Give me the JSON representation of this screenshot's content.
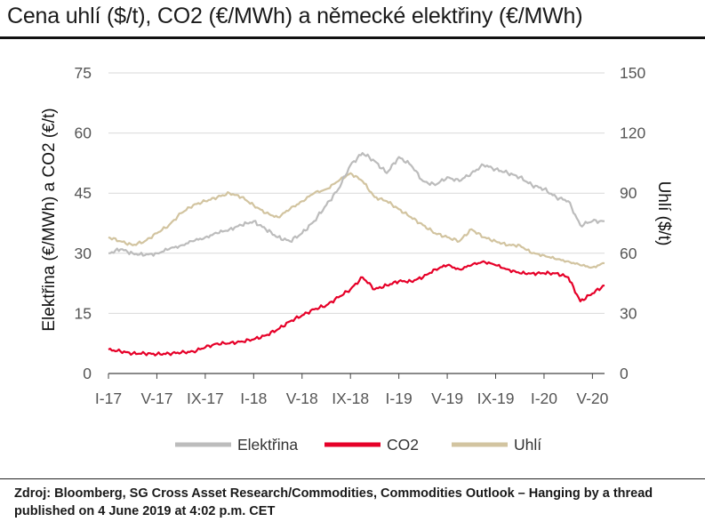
{
  "header": {
    "title": "Cena uhlí ($/t), CO2 (€/MWh) a německé elektřiny (€/MWh)"
  },
  "footer": {
    "source": "Zdroj: Bloomberg, SG Cross Asset Research/Commodities, Commodities Outlook – Hanging by a thread published on 4 June 2019 at 4:02 p.m. CET"
  },
  "chart_data": {
    "type": "line",
    "title": "Cena uhlí ($/t), CO2 (€/MWh) a německé elektřiny (€/MWh)",
    "y_left_label": "Elektřina (€/MWh) a CO2 (€/t)",
    "y_right_label": "Uhlí ($/t)",
    "y_left_ticks": [
      "0",
      "15",
      "30",
      "45",
      "60",
      "75"
    ],
    "y_right_ticks": [
      "0",
      "30",
      "60",
      "90",
      "120",
      "150"
    ],
    "y_left_range": [
      0,
      75
    ],
    "y_right_range": [
      0,
      150
    ],
    "x_ticks": [
      "I-17",
      "V-17",
      "IX-17",
      "I-18",
      "V-18",
      "IX-18",
      "I-19",
      "V-19",
      "IX-19",
      "I-20",
      "V-20"
    ],
    "x_range": [
      "2017-01",
      "2020-06"
    ],
    "grid": "horizontal",
    "legend_position": "bottom",
    "series": [
      {
        "name": "Elektřina",
        "axis": "left",
        "color": "#bcbcbc",
        "x": [
          "2017-01",
          "2017-02",
          "2017-03",
          "2017-04",
          "2017-05",
          "2017-06",
          "2017-07",
          "2017-08",
          "2017-09",
          "2017-10",
          "2017-11",
          "2017-12",
          "2018-01",
          "2018-02",
          "2018-03",
          "2018-04",
          "2018-05",
          "2018-06",
          "2018-07",
          "2018-08",
          "2018-09",
          "2018-10",
          "2018-11",
          "2018-12",
          "2019-01",
          "2019-02",
          "2019-03",
          "2019-04",
          "2019-05",
          "2019-06",
          "2019-07",
          "2019-08",
          "2019-09",
          "2019-10",
          "2019-11",
          "2019-12",
          "2020-01",
          "2020-02",
          "2020-03",
          "2020-04",
          "2020-05",
          "2020-06"
        ],
        "values": [
          30,
          31,
          30,
          29.5,
          30,
          31,
          32,
          33,
          34,
          35,
          36,
          37,
          38,
          36,
          34,
          33,
          35,
          38,
          42,
          46,
          52,
          55,
          53,
          50,
          54,
          52,
          48,
          47,
          49,
          48,
          50,
          52,
          51,
          50,
          49,
          47,
          46,
          44,
          43,
          37,
          38,
          38
        ]
      },
      {
        "name": "CO2",
        "axis": "left",
        "color": "#e60028",
        "x": [
          "2017-01",
          "2017-02",
          "2017-03",
          "2017-04",
          "2017-05",
          "2017-06",
          "2017-07",
          "2017-08",
          "2017-09",
          "2017-10",
          "2017-11",
          "2017-12",
          "2018-01",
          "2018-02",
          "2018-03",
          "2018-04",
          "2018-05",
          "2018-06",
          "2018-07",
          "2018-08",
          "2018-09",
          "2018-10",
          "2018-11",
          "2018-12",
          "2019-01",
          "2019-02",
          "2019-03",
          "2019-04",
          "2019-05",
          "2019-06",
          "2019-07",
          "2019-08",
          "2019-09",
          "2019-10",
          "2019-11",
          "2019-12",
          "2020-01",
          "2020-02",
          "2020-03",
          "2020-04",
          "2020-05",
          "2020-06"
        ],
        "values": [
          6,
          5.5,
          5,
          5,
          4.8,
          5,
          5.2,
          5.5,
          6.5,
          7.5,
          7.5,
          8,
          8.5,
          9.5,
          11,
          13,
          14.5,
          16,
          17,
          19,
          21,
          24,
          21,
          22,
          23,
          23,
          24,
          26,
          27,
          26,
          27,
          28,
          27,
          26,
          25,
          25,
          25,
          25,
          24,
          18,
          20,
          22
        ]
      },
      {
        "name": "Uhlí",
        "axis": "right",
        "color": "#d2c4a0",
        "x": [
          "2017-01",
          "2017-02",
          "2017-03",
          "2017-04",
          "2017-05",
          "2017-06",
          "2017-07",
          "2017-08",
          "2017-09",
          "2017-10",
          "2017-11",
          "2017-12",
          "2018-01",
          "2018-02",
          "2018-03",
          "2018-04",
          "2018-05",
          "2018-06",
          "2018-07",
          "2018-08",
          "2018-09",
          "2018-10",
          "2018-11",
          "2018-12",
          "2019-01",
          "2019-02",
          "2019-03",
          "2019-04",
          "2019-05",
          "2019-06",
          "2019-07",
          "2019-08",
          "2019-09",
          "2019-10",
          "2019-11",
          "2019-12",
          "2020-01",
          "2020-02",
          "2020-03",
          "2020-04",
          "2020-05",
          "2020-06"
        ],
        "values": [
          68,
          66,
          64,
          66,
          70,
          74,
          80,
          84,
          86,
          88,
          90,
          88,
          84,
          80,
          78,
          82,
          86,
          90,
          92,
          96,
          100,
          96,
          88,
          86,
          82,
          78,
          74,
          70,
          68,
          66,
          72,
          68,
          66,
          64,
          64,
          60,
          59,
          57,
          56,
          54,
          53,
          55
        ]
      }
    ]
  }
}
